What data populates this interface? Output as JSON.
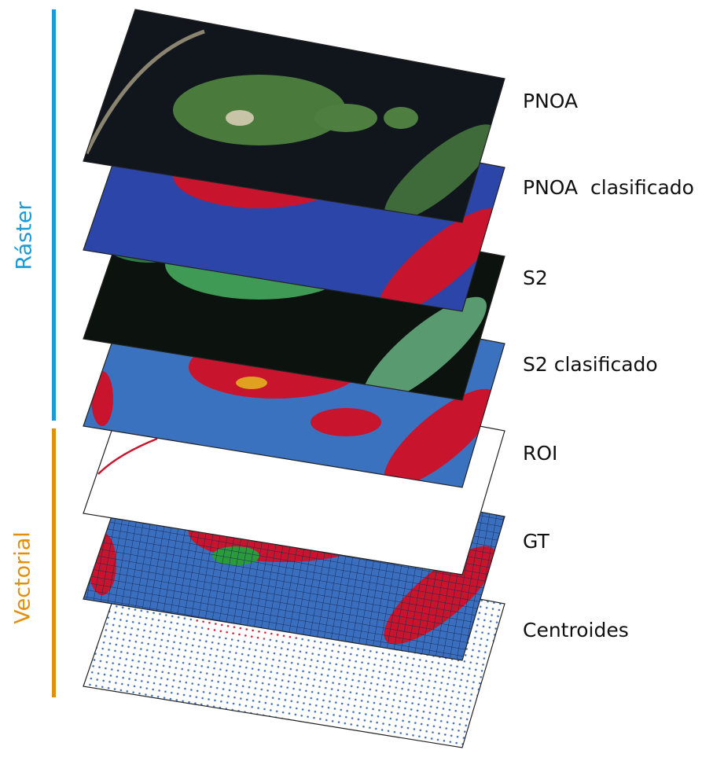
{
  "groups": [
    {
      "label": "Ráster"
    },
    {
      "label": "Vectorial"
    }
  ],
  "layers": [
    {
      "label": "PNOA"
    },
    {
      "label": "PNOA  clasificado"
    },
    {
      "label": "S2"
    },
    {
      "label": "S2 clasificado"
    },
    {
      "label": "ROI"
    },
    {
      "label": "GT"
    },
    {
      "label": "Centroides"
    }
  ]
}
